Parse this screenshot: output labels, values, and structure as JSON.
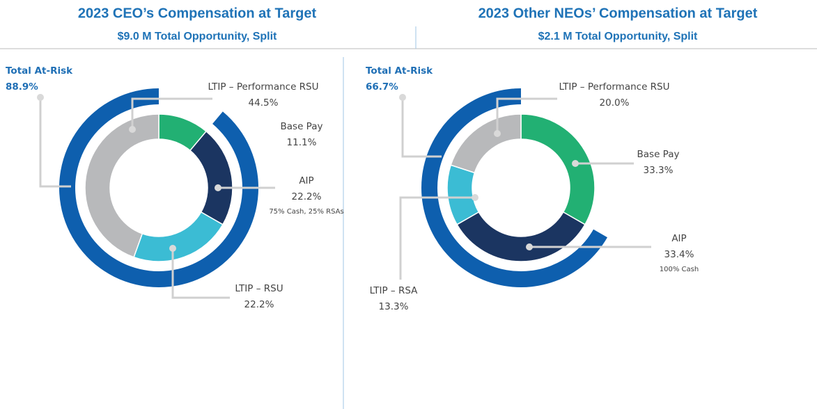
{
  "chart_data": [
    {
      "type": "pie",
      "title": "2023 CEO’s Compensation at Target",
      "subtitle": "$9.0 M Total Opportunity, Split",
      "categories": [
        "Base Pay",
        "AIP",
        "LTIP – RSU",
        "LTIP – Performance RSU"
      ],
      "values": [
        11.1,
        22.2,
        22.2,
        44.5
      ],
      "value_labels": [
        "11.1%",
        "22.2%",
        "22.2%",
        "44.5%"
      ],
      "notes": [
        null,
        "75% Cash, 25% RSAs",
        null,
        null
      ],
      "colors": [
        "#22b073",
        "#1b3561",
        "#3bbcd4",
        "#b8b9bb"
      ],
      "at_risk_label": "Total At-Risk",
      "at_risk": 88.9,
      "at_risk_value_label": "88.9%",
      "at_risk_color": "#0e5fae"
    },
    {
      "type": "pie",
      "title": "2023 Other NEOs’ Compensation at Target",
      "subtitle": "$2.1 M Total Opportunity, Split",
      "categories": [
        "Base Pay",
        "AIP",
        "LTIP – RSA",
        "LTIP – Performance RSU"
      ],
      "values": [
        33.3,
        33.4,
        13.3,
        20.0
      ],
      "value_labels": [
        "33.3%",
        "33.4%",
        "13.3%",
        "20.0%"
      ],
      "notes": [
        null,
        "100% Cash",
        null,
        null
      ],
      "colors": [
        "#22b073",
        "#1b3561",
        "#3bbcd4",
        "#b8b9bb"
      ],
      "at_risk_label": "Total At-Risk",
      "at_risk": 66.7,
      "at_risk_value_label": "66.7%",
      "at_risk_color": "#0e5fae"
    }
  ]
}
